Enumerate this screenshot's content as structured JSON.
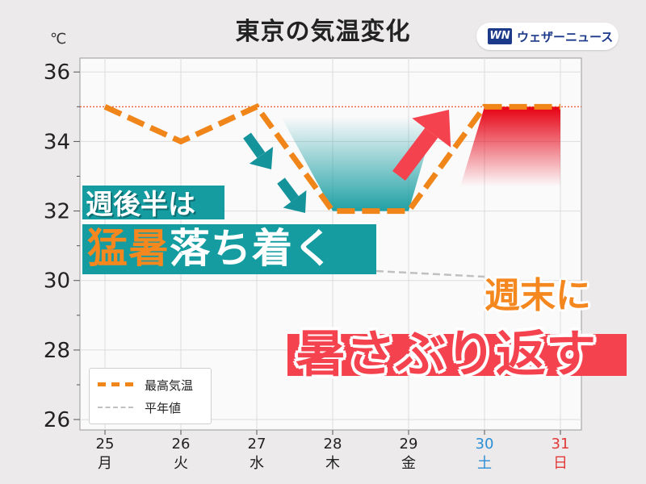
{
  "title": "東京の気温変化",
  "unit": "℃",
  "logo": {
    "mark": "WN",
    "text": "ウェザーニュース"
  },
  "legend": {
    "max_label": "最高気温",
    "normal_label": "平年値"
  },
  "captions": {
    "line1": "週後半は",
    "line2_highlight": "猛暑",
    "line2_rest": "落ち着く",
    "line3": "週末に",
    "line4": "暑さぶり返す"
  },
  "colors": {
    "max_line": "#f0861a",
    "normal_line": "#c0c0c0",
    "threshold_line": "#e8451f",
    "teal": "#149ca0",
    "red": "#f5424f",
    "saturday": "#2a8fd6",
    "sunday": "#e23a3a"
  },
  "icons": [
    "down-arrow-icon",
    "down-arrow-icon",
    "up-arrow-icon"
  ],
  "chart_data": {
    "type": "line",
    "title": "東京の気温変化",
    "ylabel": "℃",
    "ylim": [
      25.7,
      36.4
    ],
    "yticks": [
      26,
      28,
      30,
      32,
      34,
      36
    ],
    "categories": [
      "25",
      "26",
      "27",
      "28",
      "29",
      "30",
      "31"
    ],
    "weekdays": [
      "月",
      "火",
      "水",
      "木",
      "金",
      "土",
      "日"
    ],
    "series": [
      {
        "name": "最高気温",
        "values": [
          35,
          34,
          35,
          32,
          32,
          35,
          35
        ]
      }
    ],
    "reference_line": 35,
    "grid": true,
    "legend_position": "bottom-left"
  }
}
